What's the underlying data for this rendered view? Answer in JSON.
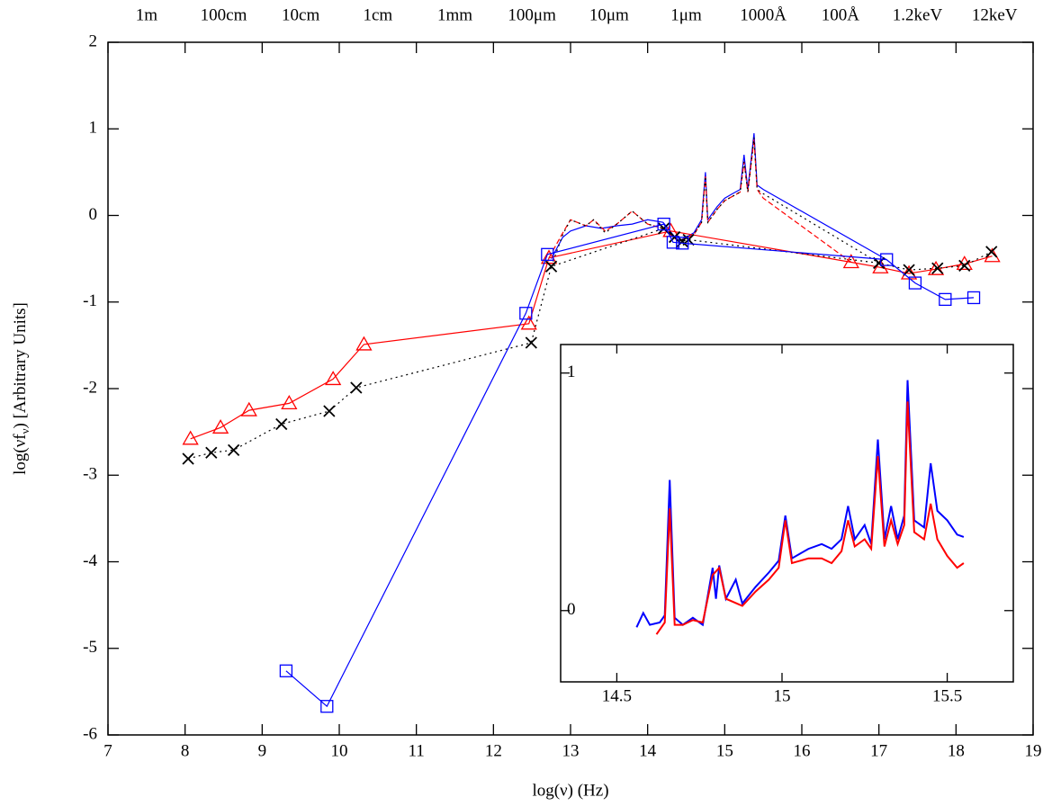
{
  "chart_data": [
    {
      "type": "line",
      "xlabel": "log(ν) (Hz)",
      "ylabel": [
        "log(νf",
        "ν",
        ") [Arbitrary Units]"
      ],
      "xlim": [
        7,
        19
      ],
      "ylim": [
        -6,
        2
      ],
      "xticks": [
        7,
        8,
        9,
        10,
        11,
        12,
        13,
        14,
        15,
        16,
        17,
        18,
        19
      ],
      "yticks": [
        -6,
        -5,
        -4,
        -3,
        -2,
        -1,
        0,
        1,
        2
      ],
      "x2ticks": [
        {
          "value": 7.5,
          "label": "1m"
        },
        {
          "value": 8.5,
          "label": "100cm"
        },
        {
          "value": 9.5,
          "label": "10cm"
        },
        {
          "value": 10.5,
          "label": "1cm"
        },
        {
          "value": 11.5,
          "label": "1mm"
        },
        {
          "value": 12.5,
          "label": "100μm"
        },
        {
          "value": 13.5,
          "label": "10μm"
        },
        {
          "value": 14.5,
          "label": "1μm"
        },
        {
          "value": 15.5,
          "label": "1000Å"
        },
        {
          "value": 16.5,
          "label": "100Å"
        },
        {
          "value": 17.5,
          "label": "1.2keV"
        },
        {
          "value": 18.5,
          "label": "12keV"
        }
      ],
      "series": [
        {
          "color": "#0000ff",
          "dash": "solid",
          "marker": null,
          "x": [
            12.75,
            12.9,
            13.0,
            13.2,
            13.4,
            13.6,
            13.8,
            14.0,
            14.2,
            14.4,
            14.6,
            14.7,
            14.75,
            14.78,
            14.9,
            15.0,
            15.1,
            15.2,
            15.25,
            15.3,
            15.38,
            15.42,
            15.5,
            17.1
          ],
          "values": [
            -0.5,
            -0.25,
            -0.18,
            -0.12,
            -0.15,
            -0.12,
            -0.1,
            -0.05,
            -0.08,
            -0.3,
            -0.2,
            -0.05,
            0.5,
            -0.05,
            0.1,
            0.2,
            0.25,
            0.3,
            0.7,
            0.3,
            0.95,
            0.35,
            0.3,
            -0.51
          ]
        },
        {
          "color": "#ff0000",
          "dash": "dashed",
          "marker": null,
          "x": [
            12.72,
            12.9,
            13.0,
            13.2,
            13.3,
            13.45,
            13.6,
            13.8,
            14.0,
            14.2,
            14.4,
            14.6,
            14.7,
            14.75,
            14.78,
            14.9,
            15.0,
            15.1,
            15.2,
            15.25,
            15.3,
            15.38,
            15.42,
            15.5,
            16.64
          ],
          "values": [
            -0.49,
            -0.2,
            -0.05,
            -0.12,
            -0.05,
            -0.18,
            -0.1,
            0.05,
            -0.1,
            -0.15,
            -0.3,
            -0.22,
            -0.08,
            0.45,
            -0.08,
            0.07,
            0.17,
            0.22,
            0.27,
            0.62,
            0.27,
            0.88,
            0.3,
            0.2,
            -0.54
          ]
        },
        {
          "color": "#000000",
          "dash": "dotted",
          "marker": null,
          "x": [
            12.75,
            12.9,
            13.0,
            13.2,
            13.3,
            13.45,
            13.6,
            13.8,
            14.0,
            14.2,
            14.4,
            14.6,
            14.7,
            14.75,
            14.78,
            14.9,
            15.0,
            15.1,
            15.2,
            15.25,
            15.3,
            15.38,
            15.42,
            15.5,
            17.0
          ],
          "values": [
            -0.59,
            -0.22,
            -0.05,
            -0.12,
            -0.05,
            -0.2,
            -0.1,
            0.05,
            -0.1,
            -0.15,
            -0.3,
            -0.22,
            -0.08,
            0.45,
            -0.08,
            0.07,
            0.17,
            0.22,
            0.27,
            0.62,
            0.27,
            0.9,
            0.3,
            0.25,
            -0.55
          ]
        },
        {
          "color": "#ff0000",
          "dash": "solid",
          "marker": "triangle",
          "x": [
            8.07,
            8.46,
            8.83,
            9.35,
            9.92,
            10.32,
            12.46,
            12.72,
            14.3,
            16.64,
            17.02,
            17.39,
            17.74,
            18.11,
            18.47
          ],
          "values": [
            -2.58,
            -2.45,
            -2.25,
            -2.17,
            -1.89,
            -1.49,
            -1.25,
            -0.49,
            -0.18,
            -0.54,
            -0.6,
            -0.67,
            -0.62,
            -0.56,
            -0.47
          ]
        },
        {
          "color": "#000000",
          "dash": "dotted",
          "marker": "x",
          "x": [
            8.04,
            8.34,
            8.63,
            9.25,
            9.87,
            10.22,
            12.49,
            12.75,
            14.21,
            14.35,
            14.45,
            14.53,
            17.0,
            17.39,
            17.76,
            18.11,
            18.46
          ],
          "values": [
            -2.81,
            -2.74,
            -2.71,
            -2.41,
            -2.26,
            -1.99,
            -1.47,
            -0.59,
            -0.15,
            -0.25,
            -0.3,
            -0.28,
            -0.55,
            -0.63,
            -0.61,
            -0.58,
            -0.42
          ]
        },
        {
          "color": "#0000ff",
          "dash": "solid",
          "marker": "square",
          "x": [
            9.31,
            9.84,
            12.42,
            12.7,
            14.21,
            14.33,
            14.45,
            17.1,
            17.47,
            17.86,
            18.23
          ],
          "values": [
            -5.26,
            -5.67,
            -1.13,
            -0.45,
            -0.1,
            -0.31,
            -0.32,
            -0.51,
            -0.78,
            -0.97,
            -0.95
          ]
        }
      ]
    },
    {
      "type": "line",
      "xlim": [
        14.33,
        15.7
      ],
      "ylim": [
        -0.3,
        1.12
      ],
      "xticks": [
        14.5,
        15,
        15.5
      ],
      "yticks": [
        0,
        1
      ],
      "series": [
        {
          "color": "#0000ff",
          "dash": "solid",
          "marker": null,
          "x": [
            14.56,
            14.58,
            14.6,
            14.63,
            14.645,
            14.66,
            14.675,
            14.7,
            14.73,
            14.76,
            14.79,
            14.8,
            14.81,
            14.83,
            14.86,
            14.88,
            14.92,
            14.96,
            14.99,
            15.01,
            15.03,
            15.08,
            15.12,
            15.15,
            15.18,
            15.2,
            15.22,
            15.25,
            15.27,
            15.29,
            15.31,
            15.33,
            15.35,
            15.37,
            15.38,
            15.4,
            15.43,
            15.45,
            15.47,
            15.5,
            15.53,
            15.55
          ],
          "values": [
            -0.07,
            -0.01,
            -0.06,
            -0.05,
            -0.02,
            0.55,
            -0.03,
            -0.06,
            -0.03,
            -0.06,
            0.18,
            0.05,
            0.19,
            0.05,
            0.13,
            0.03,
            0.1,
            0.16,
            0.21,
            0.4,
            0.22,
            0.26,
            0.28,
            0.26,
            0.3,
            0.44,
            0.3,
            0.36,
            0.28,
            0.72,
            0.3,
            0.44,
            0.3,
            0.4,
            0.97,
            0.38,
            0.35,
            0.62,
            0.42,
            0.38,
            0.32,
            0.31
          ]
        },
        {
          "color": "#ff0000",
          "dash": "solid",
          "marker": null,
          "x": [
            14.62,
            14.645,
            14.66,
            14.675,
            14.7,
            14.73,
            14.76,
            14.79,
            14.81,
            14.83,
            14.88,
            14.92,
            14.96,
            14.99,
            15.01,
            15.03,
            15.08,
            15.12,
            15.15,
            15.18,
            15.2,
            15.22,
            15.25,
            15.27,
            15.29,
            15.31,
            15.33,
            15.35,
            15.37,
            15.38,
            15.4,
            15.43,
            15.45,
            15.47,
            15.5,
            15.53,
            15.55
          ],
          "values": [
            -0.1,
            -0.05,
            0.43,
            -0.06,
            -0.06,
            -0.04,
            -0.05,
            0.15,
            0.18,
            0.05,
            0.02,
            0.08,
            0.13,
            0.18,
            0.38,
            0.2,
            0.22,
            0.22,
            0.2,
            0.25,
            0.38,
            0.27,
            0.3,
            0.26,
            0.65,
            0.27,
            0.38,
            0.28,
            0.36,
            0.88,
            0.33,
            0.3,
            0.45,
            0.3,
            0.23,
            0.18,
            0.2
          ]
        }
      ]
    }
  ]
}
